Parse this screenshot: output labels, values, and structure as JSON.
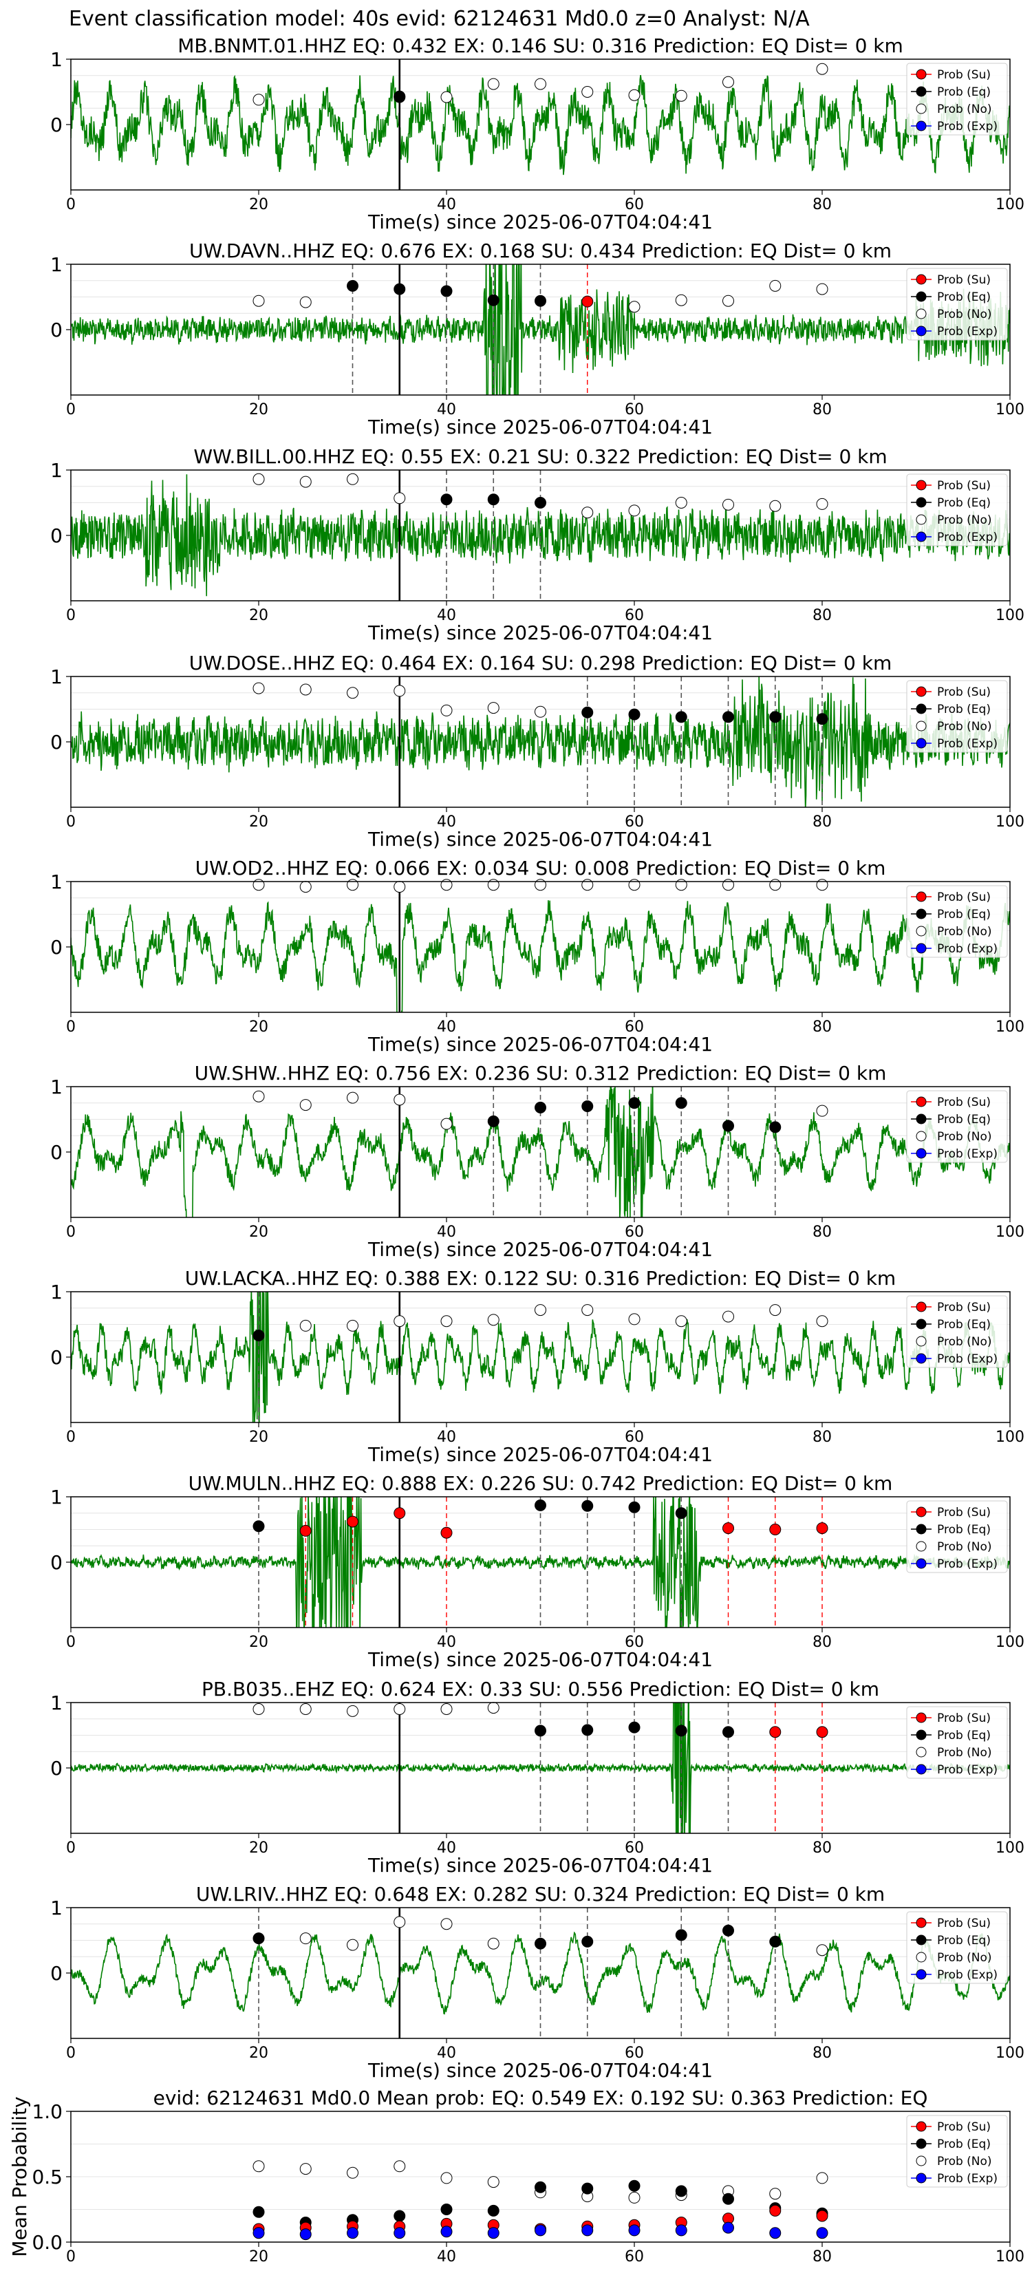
{
  "suptitle": "Event classification model: 40s evid: 62124631 Md0.0 z=0 Analyst: N/A",
  "legend_labels": [
    "Prob (Su)",
    "Prob (Eq)",
    "Prob (No)",
    "Prob (Exp)"
  ],
  "colors": {
    "su": "#ff0000",
    "eq": "#000000",
    "no": "#ffffff",
    "exp": "#0000ff",
    "wave": "#008000",
    "pick": "#000000",
    "dash_eq": "#555555",
    "dash_su": "#ff0000"
  },
  "chart_data": [
    {
      "type": "line",
      "title": "MB.BNMT.01.HHZ   EQ: 0.432  EX: 0.146  SU: 0.316   Prediction: EQ    Dist= 0 km",
      "xlabel": "Time(s) since 2025-06-07T04:04:41",
      "xlim": [
        0,
        100
      ],
      "ylim": [
        -1,
        1
      ],
      "xticks": [
        0,
        20,
        40,
        60,
        80,
        100
      ],
      "yticks": [
        0,
        1
      ],
      "ylabel": "",
      "pick": 35,
      "wave": {
        "amp": 0.55,
        "noise": 0.25,
        "freq": 0.9,
        "bursts": []
      },
      "dashed_eq": [],
      "dashed_su": [],
      "prob_eq": [
        [
          35,
          0.43
        ]
      ],
      "prob_no": [
        [
          20,
          0.38
        ],
        [
          35,
          0.42
        ],
        [
          40,
          0.42
        ],
        [
          45,
          0.62
        ],
        [
          50,
          0.62
        ],
        [
          55,
          0.5
        ],
        [
          60,
          0.45
        ],
        [
          65,
          0.44
        ],
        [
          70,
          0.65
        ],
        [
          80,
          0.85
        ]
      ],
      "prob_su": [],
      "prob_exp": []
    },
    {
      "type": "line",
      "title": "UW.DAVN..HHZ   EQ: 0.676  EX: 0.168  SU: 0.434   Prediction: EQ    Dist= 0 km",
      "xlabel": "Time(s) since 2025-06-07T04:04:41",
      "xlim": [
        0,
        100
      ],
      "ylim": [
        -1,
        1
      ],
      "xticks": [
        0,
        20,
        40,
        60,
        80,
        100
      ],
      "yticks": [
        0,
        1
      ],
      "ylabel": "",
      "pick": 35,
      "wave": {
        "amp": 0.08,
        "noise": 0.16,
        "freq": 3.0,
        "bursts": [
          [
            44,
            48,
            0.8
          ],
          [
            52,
            60,
            0.25
          ],
          [
            90,
            100,
            0.25
          ]
        ]
      },
      "dashed_eq": [
        30,
        40,
        45,
        50
      ],
      "dashed_su": [
        55
      ],
      "prob_eq": [
        [
          30,
          0.67
        ],
        [
          35,
          0.62
        ],
        [
          40,
          0.59
        ],
        [
          45,
          0.45
        ],
        [
          50,
          0.44
        ]
      ],
      "prob_no": [
        [
          20,
          0.44
        ],
        [
          25,
          0.42
        ],
        [
          60,
          0.35
        ],
        [
          65,
          0.45
        ],
        [
          70,
          0.44
        ],
        [
          75,
          0.67
        ],
        [
          80,
          0.62
        ]
      ],
      "prob_su": [
        [
          55,
          0.43
        ]
      ],
      "prob_exp": []
    },
    {
      "type": "line",
      "title": "WW.BILL.00.HHZ   EQ: 0.55  EX: 0.21  SU: 0.322   Prediction: EQ    Dist= 0 km",
      "xlabel": "Time(s) since 2025-06-07T04:04:41",
      "xlim": [
        0,
        100
      ],
      "ylim": [
        -1,
        1
      ],
      "xticks": [
        0,
        20,
        40,
        60,
        80,
        100
      ],
      "yticks": [
        0,
        1
      ],
      "ylabel": "",
      "pick": 35,
      "wave": {
        "amp": 0.12,
        "noise": 0.33,
        "freq": 2.4,
        "bursts": [
          [
            8,
            16,
            0.3
          ]
        ]
      },
      "dashed_eq": [
        40,
        45,
        50
      ],
      "dashed_su": [],
      "prob_eq": [
        [
          40,
          0.55
        ],
        [
          45,
          0.55
        ],
        [
          50,
          0.5
        ]
      ],
      "prob_no": [
        [
          20,
          0.86
        ],
        [
          25,
          0.82
        ],
        [
          30,
          0.86
        ],
        [
          35,
          0.57
        ],
        [
          55,
          0.35
        ],
        [
          60,
          0.38
        ],
        [
          65,
          0.5
        ],
        [
          70,
          0.47
        ],
        [
          75,
          0.45
        ],
        [
          80,
          0.48
        ]
      ],
      "prob_su": [],
      "prob_exp": []
    },
    {
      "type": "line",
      "title": "UW.DOSE..HHZ   EQ: 0.464  EX: 0.164  SU: 0.298   Prediction: EQ    Dist= 0 km",
      "xlabel": "Time(s) since 2025-06-07T04:04:41",
      "xlim": [
        0,
        100
      ],
      "ylim": [
        -1,
        1
      ],
      "xticks": [
        0,
        20,
        40,
        60,
        80,
        100
      ],
      "yticks": [
        0,
        1
      ],
      "ylabel": "",
      "pick": 35,
      "wave": {
        "amp": 0.15,
        "noise": 0.32,
        "freq": 2.0,
        "bursts": [
          [
            70,
            85,
            0.35
          ]
        ]
      },
      "dashed_eq": [
        55,
        60,
        65,
        70,
        75,
        80
      ],
      "dashed_su": [],
      "prob_eq": [
        [
          55,
          0.45
        ],
        [
          60,
          0.42
        ],
        [
          65,
          0.38
        ],
        [
          70,
          0.38
        ],
        [
          75,
          0.38
        ],
        [
          80,
          0.35
        ]
      ],
      "prob_no": [
        [
          20,
          0.82
        ],
        [
          25,
          0.8
        ],
        [
          30,
          0.75
        ],
        [
          35,
          0.78
        ],
        [
          40,
          0.48
        ],
        [
          45,
          0.52
        ],
        [
          50,
          0.46
        ]
      ],
      "prob_su": [],
      "prob_exp": []
    },
    {
      "type": "line",
      "title": "UW.OD2..HHZ   EQ: 0.066  EX: 0.034  SU: 0.008   Prediction: EQ    Dist= 0 km",
      "xlabel": "Time(s) since 2025-06-07T04:04:41",
      "xlim": [
        0,
        100
      ],
      "ylim": [
        -1,
        1
      ],
      "xticks": [
        0,
        20,
        40,
        60,
        80,
        100
      ],
      "yticks": [
        0,
        1
      ],
      "ylabel": "",
      "pick": 35,
      "wave": {
        "amp": 0.55,
        "noise": 0.18,
        "freq": 0.8,
        "bursts": []
      },
      "dashed_eq": [],
      "dashed_su": [],
      "prob_eq": [],
      "prob_no": [
        [
          20,
          0.95
        ],
        [
          25,
          0.92
        ],
        [
          30,
          0.95
        ],
        [
          35,
          0.92
        ],
        [
          40,
          0.95
        ],
        [
          45,
          0.95
        ],
        [
          50,
          0.95
        ],
        [
          55,
          0.95
        ],
        [
          60,
          0.95
        ],
        [
          65,
          0.95
        ],
        [
          70,
          0.95
        ],
        [
          75,
          0.95
        ],
        [
          80,
          0.95
        ]
      ],
      "prob_su": [],
      "prob_exp": []
    },
    {
      "type": "line",
      "title": "UW.SHW..HHZ   EQ: 0.756  EX: 0.236  SU: 0.312   Prediction: EQ    Dist= 0 km",
      "xlabel": "Time(s) since 2025-06-07T04:04:41",
      "xlim": [
        0,
        100
      ],
      "ylim": [
        -1,
        1
      ],
      "xticks": [
        0,
        20,
        40,
        60,
        80,
        100
      ],
      "yticks": [
        0,
        1
      ],
      "ylabel": "",
      "pick": 35,
      "wave": {
        "amp": 0.5,
        "noise": 0.14,
        "freq": 0.7,
        "bursts": [
          [
            57,
            62,
            0.5
          ]
        ]
      },
      "dashed_eq": [
        45,
        50,
        55,
        60,
        65,
        70,
        75
      ],
      "dashed_su": [],
      "prob_eq": [
        [
          45,
          0.47
        ],
        [
          50,
          0.68
        ],
        [
          55,
          0.7
        ],
        [
          60,
          0.75
        ],
        [
          65,
          0.75
        ],
        [
          70,
          0.4
        ],
        [
          75,
          0.38
        ]
      ],
      "prob_no": [
        [
          20,
          0.85
        ],
        [
          25,
          0.72
        ],
        [
          30,
          0.83
        ],
        [
          35,
          0.8
        ],
        [
          40,
          0.43
        ],
        [
          80,
          0.63
        ]
      ],
      "prob_su": [],
      "prob_exp": []
    },
    {
      "type": "line",
      "title": "UW.LACKA..HHZ   EQ: 0.388  EX: 0.122  SU: 0.316   Prediction: EQ    Dist= 0 km",
      "xlabel": "Time(s) since 2025-06-07T04:04:41",
      "xlim": [
        0,
        100
      ],
      "ylim": [
        -1,
        1
      ],
      "xticks": [
        0,
        20,
        40,
        60,
        80,
        100
      ],
      "yticks": [
        0,
        1
      ],
      "ylabel": "",
      "pick": 35,
      "wave": {
        "amp": 0.45,
        "noise": 0.15,
        "freq": 1.2,
        "bursts": [
          [
            19,
            21,
            0.7
          ]
        ]
      },
      "dashed_eq": [
        20
      ],
      "dashed_su": [],
      "prob_eq": [
        [
          20,
          0.33
        ]
      ],
      "prob_no": [
        [
          25,
          0.48
        ],
        [
          30,
          0.48
        ],
        [
          35,
          0.55
        ],
        [
          40,
          0.55
        ],
        [
          45,
          0.57
        ],
        [
          50,
          0.72
        ],
        [
          55,
          0.72
        ],
        [
          60,
          0.58
        ],
        [
          65,
          0.55
        ],
        [
          70,
          0.62
        ],
        [
          75,
          0.72
        ],
        [
          80,
          0.55
        ]
      ],
      "prob_su": [],
      "prob_exp": []
    },
    {
      "type": "line",
      "title": "UW.MULN..HHZ   EQ: 0.888  EX: 0.226  SU: 0.742   Prediction: EQ    Dist= 0 km",
      "xlabel": "Time(s) since 2025-06-07T04:04:41",
      "xlim": [
        0,
        100
      ],
      "ylim": [
        -1,
        1
      ],
      "xticks": [
        0,
        20,
        40,
        60,
        80,
        100
      ],
      "yticks": [
        0,
        1
      ],
      "ylabel": "",
      "pick": 35,
      "wave": {
        "amp": 0.05,
        "noise": 0.07,
        "freq": 2.0,
        "bursts": [
          [
            24,
            31,
            0.7
          ],
          [
            62,
            67,
            0.6
          ]
        ]
      },
      "dashed_eq": [
        20,
        35,
        50,
        55,
        60,
        65
      ],
      "dashed_su": [
        25,
        30,
        40,
        70,
        75,
        80
      ],
      "prob_eq": [
        [
          20,
          0.55
        ],
        [
          50,
          0.87
        ],
        [
          55,
          0.86
        ],
        [
          60,
          0.84
        ],
        [
          65,
          0.75
        ]
      ],
      "prob_no": [],
      "prob_su": [
        [
          25,
          0.48
        ],
        [
          30,
          0.62
        ],
        [
          35,
          0.75
        ],
        [
          40,
          0.45
        ],
        [
          70,
          0.52
        ],
        [
          75,
          0.5
        ],
        [
          80,
          0.52
        ]
      ],
      "prob_exp": []
    },
    {
      "type": "line",
      "title": "PB.B035..EHZ   EQ: 0.624  EX: 0.33  SU: 0.556   Prediction: EQ    Dist= 0 km",
      "xlabel": "Time(s) since 2025-06-07T04:04:41",
      "xlim": [
        0,
        100
      ],
      "ylim": [
        -1,
        1
      ],
      "xticks": [
        0,
        20,
        40,
        60,
        80,
        100
      ],
      "yticks": [
        0,
        1
      ],
      "ylabel": "",
      "pick": 35,
      "wave": {
        "amp": 0.02,
        "noise": 0.05,
        "freq": 3.0,
        "bursts": [
          [
            64,
            66,
            1.0
          ]
        ]
      },
      "dashed_eq": [
        50,
        55,
        60,
        65,
        70
      ],
      "dashed_su": [
        75,
        80
      ],
      "prob_eq": [
        [
          50,
          0.57
        ],
        [
          55,
          0.58
        ],
        [
          60,
          0.62
        ],
        [
          65,
          0.57
        ],
        [
          70,
          0.55
        ]
      ],
      "prob_no": [
        [
          20,
          0.9
        ],
        [
          25,
          0.9
        ],
        [
          30,
          0.87
        ],
        [
          35,
          0.9
        ],
        [
          40,
          0.9
        ],
        [
          45,
          0.92
        ]
      ],
      "prob_su": [
        [
          75,
          0.55
        ],
        [
          80,
          0.55
        ]
      ],
      "prob_exp": []
    },
    {
      "type": "line",
      "title": "UW.LRIV..HHZ   EQ: 0.648  EX: 0.282  SU: 0.324   Prediction: EQ    Dist= 0 km",
      "xlabel": "Time(s) since 2025-06-07T04:04:41",
      "xlim": [
        0,
        100
      ],
      "ylim": [
        -1,
        1
      ],
      "xticks": [
        0,
        20,
        40,
        60,
        80,
        100
      ],
      "yticks": [
        0,
        1
      ],
      "ylabel": "",
      "pick": 35,
      "wave": {
        "amp": 0.55,
        "noise": 0.08,
        "freq": 0.55,
        "bursts": []
      },
      "dashed_eq": [
        20,
        50,
        55,
        65,
        70,
        75
      ],
      "dashed_su": [],
      "prob_eq": [
        [
          20,
          0.53
        ],
        [
          50,
          0.45
        ],
        [
          55,
          0.48
        ],
        [
          65,
          0.58
        ],
        [
          70,
          0.65
        ],
        [
          75,
          0.48
        ]
      ],
      "prob_no": [
        [
          25,
          0.53
        ],
        [
          30,
          0.43
        ],
        [
          35,
          0.78
        ],
        [
          40,
          0.75
        ],
        [
          45,
          0.45
        ],
        [
          80,
          0.35
        ]
      ],
      "prob_su": [],
      "prob_exp": []
    },
    {
      "type": "scatter",
      "title": "evid: 62124631  Md0.0   Mean prob:   EQ: 0.549  EX: 0.192  SU: 0.363   Prediction: EQ",
      "xlabel": "",
      "ylabel": "Mean Probability",
      "xlim": [
        0,
        100
      ],
      "ylim": [
        0,
        1
      ],
      "xticks": [
        0,
        20,
        40,
        60,
        80,
        100
      ],
      "yticks": [
        0.0,
        0.5,
        1.0
      ],
      "pick": null,
      "wave": null,
      "dashed_eq": [],
      "dashed_su": [],
      "prob_no": [
        [
          20,
          0.58
        ],
        [
          25,
          0.56
        ],
        [
          30,
          0.53
        ],
        [
          35,
          0.58
        ],
        [
          40,
          0.49
        ],
        [
          45,
          0.46
        ],
        [
          50,
          0.38
        ],
        [
          55,
          0.35
        ],
        [
          60,
          0.34
        ],
        [
          65,
          0.36
        ],
        [
          70,
          0.39
        ],
        [
          75,
          0.37
        ],
        [
          80,
          0.49
        ]
      ],
      "prob_eq": [
        [
          20,
          0.23
        ],
        [
          25,
          0.15
        ],
        [
          30,
          0.17
        ],
        [
          35,
          0.2
        ],
        [
          40,
          0.25
        ],
        [
          45,
          0.24
        ],
        [
          50,
          0.42
        ],
        [
          55,
          0.41
        ],
        [
          60,
          0.43
        ],
        [
          65,
          0.39
        ],
        [
          70,
          0.33
        ],
        [
          75,
          0.26
        ],
        [
          80,
          0.22
        ]
      ],
      "prob_su": [
        [
          20,
          0.1
        ],
        [
          25,
          0.11
        ],
        [
          30,
          0.12
        ],
        [
          35,
          0.12
        ],
        [
          40,
          0.14
        ],
        [
          45,
          0.13
        ],
        [
          50,
          0.1
        ],
        [
          55,
          0.12
        ],
        [
          60,
          0.13
        ],
        [
          65,
          0.15
        ],
        [
          70,
          0.18
        ],
        [
          75,
          0.24
        ],
        [
          80,
          0.2
        ]
      ],
      "prob_exp": [
        [
          20,
          0.07
        ],
        [
          25,
          0.06
        ],
        [
          30,
          0.07
        ],
        [
          35,
          0.07
        ],
        [
          40,
          0.08
        ],
        [
          45,
          0.07
        ],
        [
          50,
          0.09
        ],
        [
          55,
          0.09
        ],
        [
          60,
          0.09
        ],
        [
          65,
          0.09
        ],
        [
          70,
          0.11
        ],
        [
          75,
          0.07
        ],
        [
          80,
          0.07
        ]
      ]
    }
  ]
}
